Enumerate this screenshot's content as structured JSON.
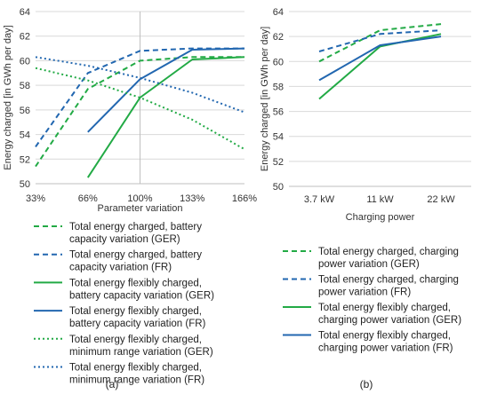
{
  "colors": {
    "green": "#22aa45",
    "blue": "#2267b0",
    "grid": "#d9d9d9",
    "axis": "#bfbfbf"
  },
  "chart_data": [
    {
      "type": "line",
      "panel_label": "(a)",
      "xlabel": "Parameter variation",
      "ylabel": "Energy charged [in GWh per day]",
      "categories": [
        "33%",
        "66%",
        "100%",
        "133%",
        "166%"
      ],
      "ylim": [
        50,
        64
      ],
      "yticks": [
        50,
        52,
        54,
        56,
        58,
        60,
        62,
        64
      ],
      "grid": "horizontal",
      "legend_position": "bottom",
      "series": [
        {
          "name": "Total energy charged, battery capacity variation (GER)",
          "legend_lines": [
            "Total energy charged, battery",
            "capacity variation (GER)"
          ],
          "color": "green",
          "dash": "dashed",
          "values": [
            51.4,
            57.7,
            60.0,
            60.3,
            60.3
          ]
        },
        {
          "name": "Total energy charged, battery capacity variation (FR)",
          "legend_lines": [
            "Total energy charged, battery",
            "capacity variation (FR)"
          ],
          "color": "blue",
          "dash": "dashed",
          "values": [
            53.0,
            59.0,
            60.8,
            61.0,
            61.0
          ]
        },
        {
          "name": "Total energy flexibly charged, battery capacity variation (GER)",
          "legend_lines": [
            "Total energy flexibly charged,",
            "battery capacity variation (GER)"
          ],
          "color": "green",
          "dash": "solid",
          "values": [
            null,
            50.5,
            57.0,
            60.1,
            60.3
          ]
        },
        {
          "name": "Total energy flexibly charged, battery capacity variation (FR)",
          "legend_lines": [
            "Total energy flexibly charged,",
            "battery capacity variation (FR)"
          ],
          "color": "blue",
          "dash": "solid",
          "values": [
            null,
            54.2,
            58.5,
            60.9,
            61.0
          ]
        },
        {
          "name": "Total energy flexibly charged, minimum range variation (GER)",
          "legend_lines": [
            "Total energy flexibly charged,",
            "minimum range variation (GER)"
          ],
          "color": "green",
          "dash": "dotted",
          "values": [
            59.4,
            58.4,
            57.0,
            55.2,
            52.8
          ]
        },
        {
          "name": "Total energy flexibly charged, minimum range variation (FR)",
          "legend_lines": [
            "Total energy flexibly charged,",
            "minimum range variation (FR)"
          ],
          "color": "blue",
          "dash": "dotted",
          "values": [
            60.3,
            59.6,
            58.6,
            57.4,
            55.8
          ]
        }
      ]
    },
    {
      "type": "line",
      "panel_label": "(b)",
      "xlabel": "Charging power",
      "ylabel": "Energy charged [in GWh per day]",
      "categories": [
        "3.7 kW",
        "11 kW",
        "22 kW"
      ],
      "ylim": [
        50,
        64
      ],
      "yticks": [
        50,
        52,
        54,
        56,
        58,
        60,
        62,
        64
      ],
      "grid": "horizontal",
      "legend_position": "bottom",
      "series": [
        {
          "name": "Total energy charged, charging power variation (GER)",
          "legend_lines": [
            "Total energy charged, charging",
            "power variation (GER)"
          ],
          "color": "green",
          "dash": "dashed",
          "values": [
            60.0,
            62.5,
            63.0
          ]
        },
        {
          "name": "Total energy charged, charging power variation (FR)",
          "legend_lines": [
            "Total energy charged, charging",
            "power variation (FR)"
          ],
          "color": "blue",
          "dash": "dashed",
          "values": [
            60.8,
            62.2,
            62.5
          ]
        },
        {
          "name": "Total energy flexibly charged, charging power variation (GER)",
          "legend_lines": [
            "Total energy flexibly charged,",
            "charging power variation (GER)"
          ],
          "color": "green",
          "dash": "solid",
          "values": [
            57.0,
            61.2,
            62.2
          ]
        },
        {
          "name": "Total energy flexibly charged, charging power variation (FR)",
          "legend_lines": [
            "Total energy flexibly charged,",
            "charging power variation (FR)"
          ],
          "color": "blue",
          "dash": "solid",
          "values": [
            58.5,
            61.3,
            62.0
          ]
        }
      ]
    }
  ]
}
